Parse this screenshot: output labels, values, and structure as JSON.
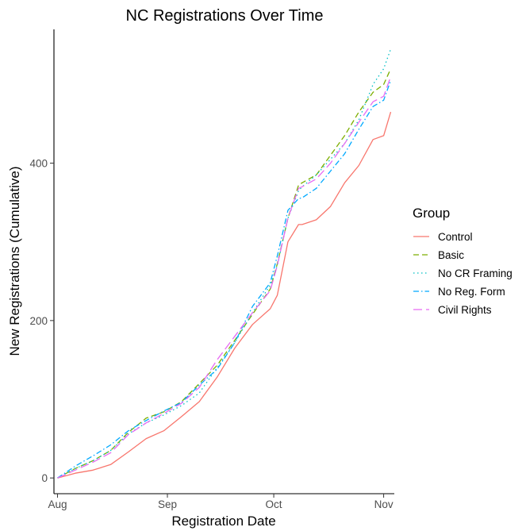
{
  "chart_data": {
    "type": "line",
    "title": "NC Registrations Over Time",
    "xlabel": "Registration Date",
    "ylabel": "New Registrations (Cumulative)",
    "x_range": [
      "2020-07-31",
      "2020-11-04"
    ],
    "ylim": [
      -20,
      570
    ],
    "x_ticks": [
      {
        "date": "2020-08-01",
        "label": "Aug"
      },
      {
        "date": "2020-09-01",
        "label": "Sep"
      },
      {
        "date": "2020-10-01",
        "label": "Oct"
      },
      {
        "date": "2020-11-01",
        "label": "Nov"
      }
    ],
    "y_ticks": [
      0,
      200,
      400
    ],
    "grid": false,
    "legend": {
      "title": "Group",
      "position": "right"
    },
    "x": [
      "2020-08-01",
      "2020-08-06",
      "2020-08-11",
      "2020-08-16",
      "2020-08-21",
      "2020-08-26",
      "2020-08-31",
      "2020-09-05",
      "2020-09-10",
      "2020-09-15",
      "2020-09-20",
      "2020-09-25",
      "2020-09-30",
      "2020-10-02",
      "2020-10-05",
      "2020-10-08",
      "2020-10-09",
      "2020-10-13",
      "2020-10-17",
      "2020-10-21",
      "2020-10-25",
      "2020-10-29",
      "2020-11-01",
      "2020-11-03"
    ],
    "series": [
      {
        "name": "Control",
        "color": "#F8766D",
        "dash": "",
        "values": [
          0,
          6,
          10,
          17,
          33,
          50,
          60,
          78,
          97,
          128,
          165,
          195,
          215,
          232,
          300,
          322,
          322,
          328,
          345,
          375,
          397,
          430,
          435,
          465
        ]
      },
      {
        "name": "Basic",
        "color": "#7CAE00",
        "dash": "7,4",
        "values": [
          0,
          12,
          22,
          35,
          58,
          76,
          84,
          97,
          120,
          143,
          175,
          208,
          240,
          272,
          330,
          372,
          375,
          385,
          410,
          435,
          465,
          490,
          500,
          520
        ]
      },
      {
        "name": "No CR Framing",
        "color": "#00BFC4",
        "dash": "1.5,3.5",
        "values": [
          0,
          12,
          22,
          35,
          56,
          70,
          80,
          92,
          108,
          140,
          172,
          210,
          245,
          270,
          330,
          365,
          370,
          385,
          405,
          425,
          455,
          500,
          520,
          545
        ]
      },
      {
        "name": "No Reg. Form",
        "color": "#00A9FF",
        "dash": "7,3,1.5,3",
        "values": [
          0,
          15,
          28,
          42,
          60,
          73,
          85,
          96,
          118,
          138,
          172,
          218,
          248,
          282,
          340,
          355,
          356,
          368,
          390,
          412,
          443,
          472,
          480,
          505
        ]
      },
      {
        "name": "Civil Rights",
        "color": "#E76BF3",
        "dash": "11,5",
        "values": [
          0,
          10,
          20,
          32,
          55,
          70,
          82,
          95,
          115,
          150,
          180,
          210,
          238,
          270,
          330,
          368,
          370,
          380,
          400,
          425,
          452,
          478,
          485,
          510
        ]
      }
    ]
  }
}
